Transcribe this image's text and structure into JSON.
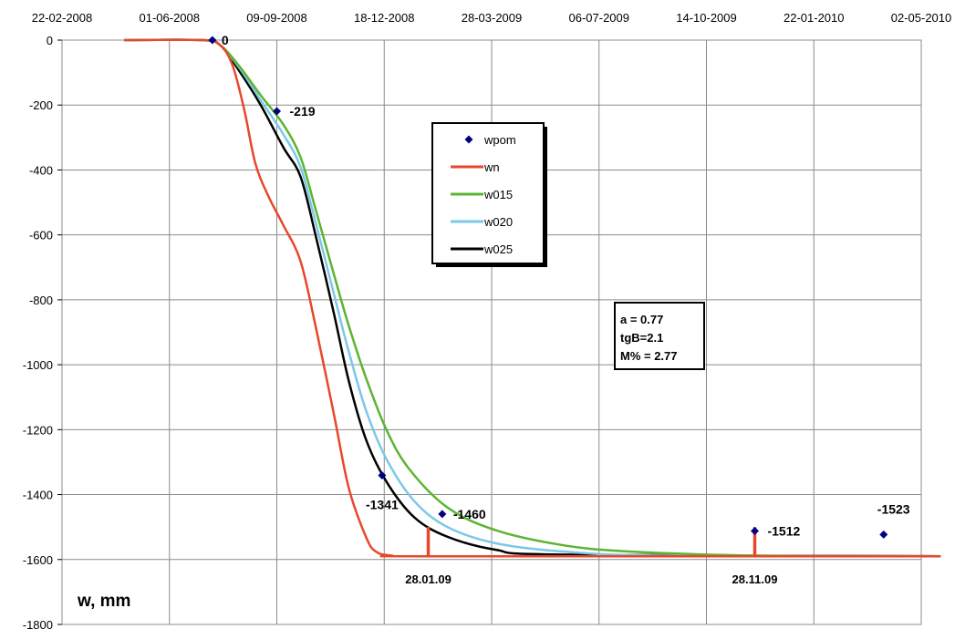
{
  "chart_data": {
    "type": "line",
    "xlabel": "",
    "ylabel": "w, mm",
    "x_ticks": [
      "22-02-2008",
      "01-06-2008",
      "09-09-2008",
      "18-12-2008",
      "28-03-2009",
      "06-07-2009",
      "14-10-2009",
      "22-01-2010",
      "02-05-2010"
    ],
    "y_ticks": [
      0,
      -200,
      -400,
      -600,
      -800,
      -1000,
      -1200,
      -1400,
      -1600,
      -1800
    ],
    "ylim": [
      -1800,
      0
    ],
    "xlim": [
      "2008-02-22",
      "2010-05-02"
    ],
    "grid": true,
    "legend_position": "center",
    "series": [
      {
        "name": "wpom",
        "kind": "points",
        "color": "#000080",
        "points": [
          {
            "x": "2008-07-11",
            "y": 0,
            "label": "0"
          },
          {
            "x": "2008-09-09",
            "y": -219,
            "label": "-219"
          },
          {
            "x": "2008-12-16",
            "y": -1341,
            "label": "-1341"
          },
          {
            "x": "2009-02-10",
            "y": -1460,
            "label": "-1460"
          },
          {
            "x": "2009-11-28",
            "y": -1512,
            "label": "-1512"
          },
          {
            "x": "2010-03-28",
            "y": -1523,
            "label": "-1523"
          }
        ]
      },
      {
        "name": "wn",
        "kind": "line",
        "color": "#e8472b",
        "points": [
          {
            "x": "2008-04-20",
            "y": 0
          },
          {
            "x": "2008-07-01",
            "y": 0
          },
          {
            "x": "2008-07-18",
            "y": -15
          },
          {
            "x": "2008-07-30",
            "y": -80
          },
          {
            "x": "2008-08-10",
            "y": -220
          },
          {
            "x": "2008-08-20",
            "y": -380
          },
          {
            "x": "2008-09-01",
            "y": -480
          },
          {
            "x": "2008-09-15",
            "y": -570
          },
          {
            "x": "2008-10-01",
            "y": -680
          },
          {
            "x": "2008-10-15",
            "y": -880
          },
          {
            "x": "2008-11-01",
            "y": -1150
          },
          {
            "x": "2008-11-15",
            "y": -1380
          },
          {
            "x": "2008-12-01",
            "y": -1530
          },
          {
            "x": "2008-12-10",
            "y": -1575
          },
          {
            "x": "2008-12-25",
            "y": -1588
          },
          {
            "x": "2009-02-01",
            "y": -1590
          },
          {
            "x": "2010-05-20",
            "y": -1590
          }
        ]
      },
      {
        "name": "w015",
        "kind": "line",
        "color": "#5cb531",
        "points": [
          {
            "x": "2008-04-20",
            "y": 0
          },
          {
            "x": "2008-07-01",
            "y": 0
          },
          {
            "x": "2008-07-18",
            "y": -15
          },
          {
            "x": "2008-08-05",
            "y": -80
          },
          {
            "x": "2008-08-25",
            "y": -170
          },
          {
            "x": "2008-09-15",
            "y": -260
          },
          {
            "x": "2008-10-01",
            "y": -360
          },
          {
            "x": "2008-10-15",
            "y": -520
          },
          {
            "x": "2008-11-01",
            "y": -720
          },
          {
            "x": "2008-11-15",
            "y": -880
          },
          {
            "x": "2008-12-01",
            "y": -1040
          },
          {
            "x": "2008-12-20",
            "y": -1200
          },
          {
            "x": "2009-01-10",
            "y": -1320
          },
          {
            "x": "2009-02-15",
            "y": -1440
          },
          {
            "x": "2009-04-01",
            "y": -1510
          },
          {
            "x": "2009-06-01",
            "y": -1555
          },
          {
            "x": "2009-08-01",
            "y": -1575
          },
          {
            "x": "2009-12-01",
            "y": -1588
          },
          {
            "x": "2010-05-20",
            "y": -1590
          }
        ]
      },
      {
        "name": "w020",
        "kind": "line",
        "color": "#7cc8e8",
        "points": [
          {
            "x": "2008-04-20",
            "y": 0
          },
          {
            "x": "2008-07-01",
            "y": 0
          },
          {
            "x": "2008-07-18",
            "y": -15
          },
          {
            "x": "2008-08-05",
            "y": -85
          },
          {
            "x": "2008-08-25",
            "y": -185
          },
          {
            "x": "2008-09-15",
            "y": -290
          },
          {
            "x": "2008-10-01",
            "y": -390
          },
          {
            "x": "2008-10-15",
            "y": -560
          },
          {
            "x": "2008-11-01",
            "y": -780
          },
          {
            "x": "2008-11-15",
            "y": -960
          },
          {
            "x": "2008-12-01",
            "y": -1140
          },
          {
            "x": "2008-12-20",
            "y": -1290
          },
          {
            "x": "2009-01-15",
            "y": -1420
          },
          {
            "x": "2009-02-15",
            "y": -1500
          },
          {
            "x": "2009-04-01",
            "y": -1550
          },
          {
            "x": "2009-06-01",
            "y": -1575
          },
          {
            "x": "2009-09-01",
            "y": -1588
          },
          {
            "x": "2010-05-20",
            "y": -1590
          }
        ]
      },
      {
        "name": "w025",
        "kind": "line",
        "color": "#000000",
        "points": [
          {
            "x": "2008-04-20",
            "y": 0
          },
          {
            "x": "2008-07-01",
            "y": 0
          },
          {
            "x": "2008-07-18",
            "y": -15
          },
          {
            "x": "2008-08-05",
            "y": -95
          },
          {
            "x": "2008-08-25",
            "y": -200
          },
          {
            "x": "2008-09-15",
            "y": -330
          },
          {
            "x": "2008-10-01",
            "y": -420
          },
          {
            "x": "2008-10-15",
            "y": -600
          },
          {
            "x": "2008-11-01",
            "y": -840
          },
          {
            "x": "2008-11-15",
            "y": -1050
          },
          {
            "x": "2008-12-01",
            "y": -1230
          },
          {
            "x": "2008-12-20",
            "y": -1360
          },
          {
            "x": "2009-01-15",
            "y": -1470
          },
          {
            "x": "2009-02-15",
            "y": -1530
          },
          {
            "x": "2009-04-01",
            "y": -1570
          },
          {
            "x": "2009-06-01",
            "y": -1585
          },
          {
            "x": "2010-05-20",
            "y": -1590
          }
        ]
      }
    ],
    "markers": [
      {
        "label": "28.01.09",
        "x": "2009-01-28",
        "y": -1590,
        "color": "#e8472b"
      },
      {
        "label": "28.11.09",
        "x": "2009-11-28",
        "y": -1590,
        "color": "#e8472b"
      }
    ],
    "params_box": [
      "a = 0.77",
      "tgB=2.1",
      "M% = 2.77"
    ]
  }
}
